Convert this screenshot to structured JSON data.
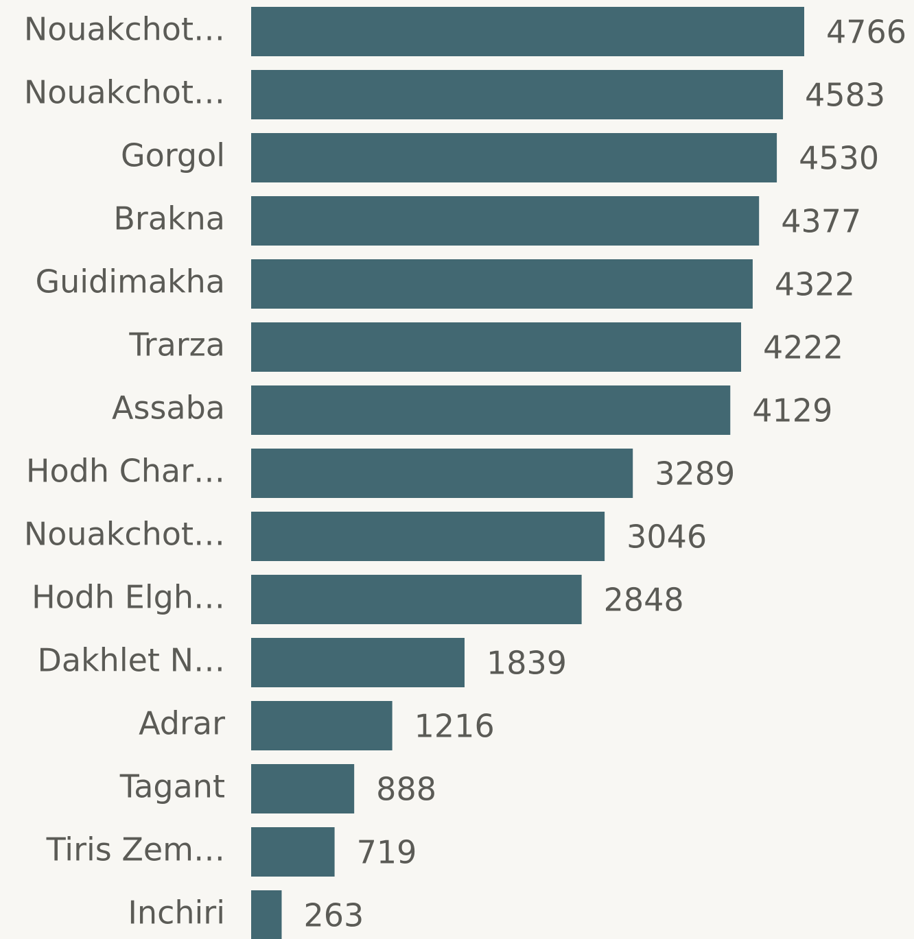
{
  "chart_data": {
    "type": "bar",
    "orientation": "horizontal",
    "categories": [
      "Nouakchot…",
      "Nouakchot…",
      "Gorgol",
      "Brakna",
      "Guidimakha",
      "Trarza",
      "Assaba",
      "Hodh Char…",
      "Nouakchot…",
      "Hodh Elgh…",
      "Dakhlet N…",
      "Adrar",
      "Tagant",
      "Tiris Zem…",
      "Inchiri"
    ],
    "values": [
      4766,
      4583,
      4530,
      4377,
      4322,
      4222,
      4129,
      3289,
      3046,
      2848,
      1839,
      1216,
      888,
      719,
      263
    ],
    "color": "#426872"
  }
}
